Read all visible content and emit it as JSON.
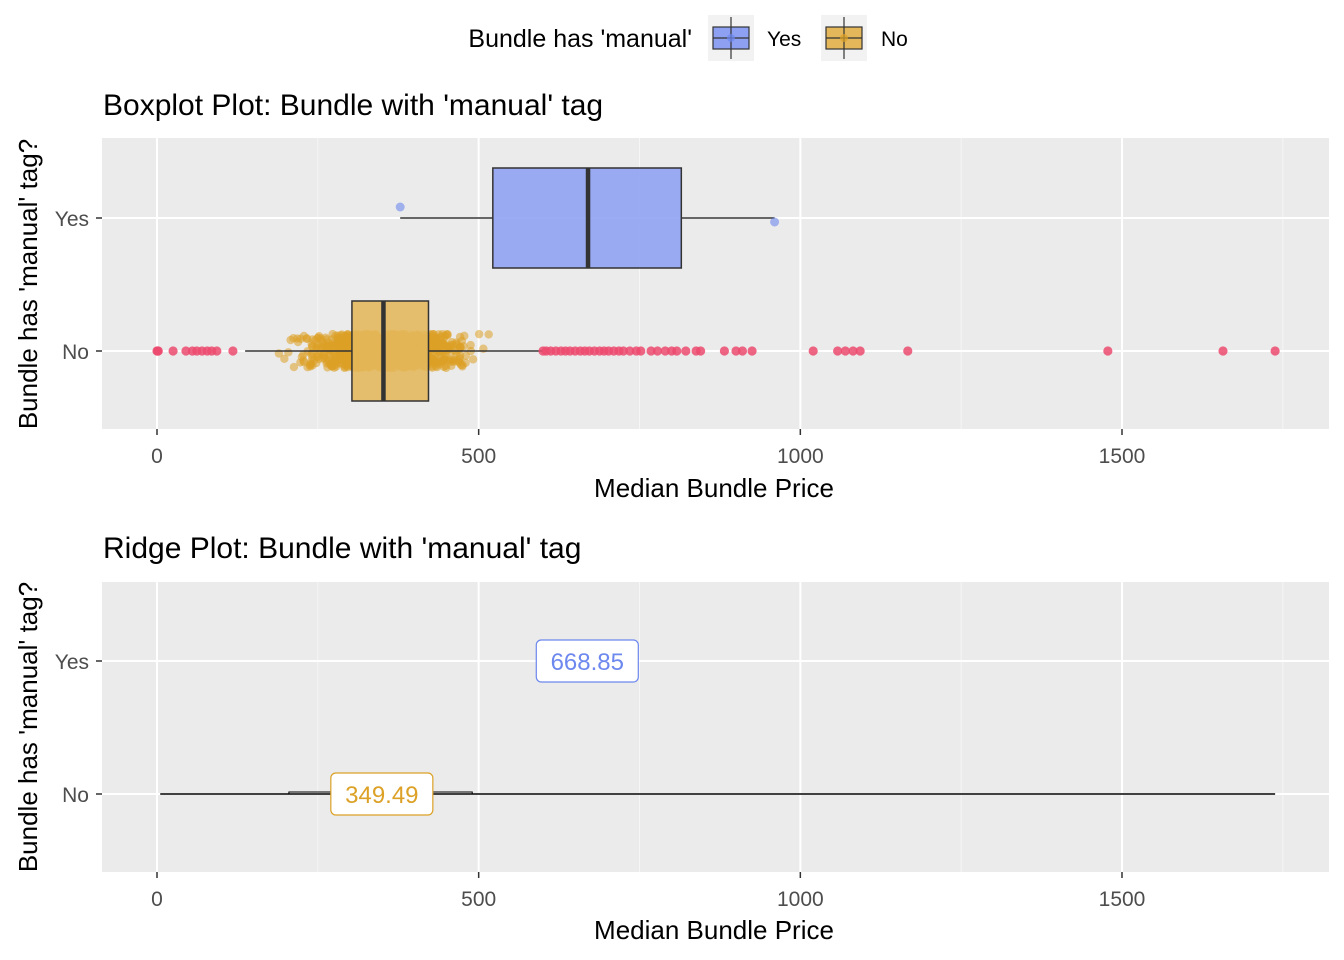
{
  "legend": {
    "title": "Bundle has 'manual'",
    "items": [
      {
        "label": "Yes",
        "color": "#6d88ee"
      },
      {
        "label": "No",
        "color": "#dca126"
      }
    ]
  },
  "colors": {
    "yes": "#6d88ee",
    "no": "#dca126",
    "outlier": "#ec4a6e",
    "panel": "#ebebeb",
    "grid": "#ffffff",
    "axis_text": "#4d4d4d"
  },
  "chart_data": [
    {
      "type": "boxplot",
      "title": "Boxplot Plot: Bundle with 'manual' tag",
      "xlabel": "Median Bundle Price",
      "ylabel": "Bundle has 'manual' tag?",
      "xlim": [
        -87,
        1825
      ],
      "x_ticks": [
        0,
        500,
        1000,
        1500
      ],
      "categories": [
        "No",
        "Yes"
      ],
      "boxes": [
        {
          "group": "Yes",
          "whisker_low": 378,
          "q1": 522,
          "median": 670,
          "q3": 815,
          "whisker_high": 960
        },
        {
          "group": "No",
          "whisker_low": 137,
          "q1": 303,
          "median": 352,
          "q3": 422,
          "whisker_high": 600
        }
      ],
      "points": [
        {
          "group": "Yes",
          "values": [
            378,
            960
          ]
        },
        {
          "group": "No",
          "jitter_range": [
            170,
            530
          ]
        }
      ],
      "outliers": {
        "group": "No",
        "values": [
          0,
          1,
          2,
          25,
          45,
          55,
          62,
          70,
          78,
          85,
          93,
          118,
          600,
          605,
          612,
          620,
          628,
          635,
          642,
          650,
          658,
          665,
          672,
          680,
          688,
          695,
          702,
          710,
          718,
          725,
          735,
          745,
          752,
          768,
          778,
          790,
          800,
          808,
          822,
          838,
          845,
          882,
          900,
          910,
          925,
          1020,
          1058,
          1070,
          1082,
          1093,
          1167,
          1478,
          1657,
          1738
        ]
      },
      "grid": true
    },
    {
      "type": "ridge",
      "title": "Ridge Plot: Bundle with 'manual' tag",
      "xlabel": "Median Bundle Price",
      "ylabel": "Bundle has 'manual' tag?",
      "xlim": [
        -87,
        1825
      ],
      "x_ticks": [
        0,
        500,
        1000,
        1500
      ],
      "categories": [
        "No",
        "Yes"
      ],
      "ridges": [
        {
          "group": "No",
          "range": [
            5,
            1738
          ],
          "median": 349.49,
          "label": "349.49"
        },
        {
          "group": "Yes",
          "median": 668.85,
          "label": "668.85"
        }
      ],
      "grid": true
    }
  ]
}
